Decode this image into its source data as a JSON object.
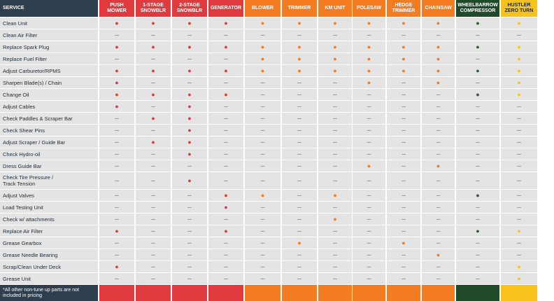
{
  "header": {
    "service": "SERVICE"
  },
  "columns": [
    {
      "label": "PUSH\nMOWER",
      "color": "#e03a3e",
      "dot": "#e03a3e",
      "text": "#ffffff"
    },
    {
      "label": "1-STAGE\nSNOWBLR",
      "color": "#e03a3e",
      "dot": "#e03a3e",
      "text": "#ffffff"
    },
    {
      "label": "2-STAGE\nSNOWBLR",
      "color": "#e03a3e",
      "dot": "#e03a3e",
      "text": "#ffffff"
    },
    {
      "label": "GENERATOR",
      "color": "#e03a3e",
      "dot": "#e03a3e",
      "text": "#ffffff"
    },
    {
      "label": "BLOWER",
      "color": "#f47b20",
      "dot": "#f47b20",
      "text": "#ffffff"
    },
    {
      "label": "TRIMMER",
      "color": "#f47b20",
      "dot": "#f47b20",
      "text": "#ffffff"
    },
    {
      "label": "KM UNIT",
      "color": "#f47b20",
      "dot": "#f47b20",
      "text": "#ffffff"
    },
    {
      "label": "POLESAW",
      "color": "#f47b20",
      "dot": "#f47b20",
      "text": "#ffffff"
    },
    {
      "label": "HEDGE\nTRIMMER",
      "color": "#f47b20",
      "dot": "#f47b20",
      "text": "#ffffff"
    },
    {
      "label": "CHAINSAW",
      "color": "#f47b20",
      "dot": "#f47b20",
      "text": "#ffffff"
    },
    {
      "label": "WHEELBARROW\nCOMPRESSOR",
      "color": "#1f4a2a",
      "dot": "#2b5a30",
      "text": "#ffffff"
    },
    {
      "label": "HUSTLER\nZERO TURN",
      "color": "#f7c21b",
      "dot": "#f5c518",
      "text": "#1f2a36"
    }
  ],
  "rows": [
    {
      "service": "Clean Unit",
      "cells": [
        "●",
        "●",
        "●",
        "●",
        "●",
        "●",
        "●",
        "●",
        "●",
        "●",
        "●",
        "●"
      ]
    },
    {
      "service": "Clean Air Filter",
      "cells": [
        "–",
        "–",
        "–",
        "–",
        "–",
        "–",
        "–",
        "–",
        "–",
        "–",
        "–",
        "–"
      ]
    },
    {
      "service": "Replace Spark Plug",
      "cells": [
        "●",
        "●",
        "●",
        "●",
        "●",
        "●",
        "●",
        "●",
        "●",
        "●",
        "●",
        "●"
      ]
    },
    {
      "service": "Replace Fuel Filter",
      "cells": [
        "–",
        "–",
        "–",
        "–",
        "●",
        "●",
        "●",
        "●",
        "●",
        "●",
        "–",
        "●"
      ]
    },
    {
      "service": "Adjust Carburetor/RPMS",
      "cells": [
        "●",
        "●",
        "●",
        "●",
        "●",
        "●",
        "●",
        "●",
        "●",
        "●",
        "●",
        "●"
      ]
    },
    {
      "service": "Sharpen Blade(s) / Chain",
      "cells": [
        "●",
        "–",
        "–",
        "–",
        "–",
        "–",
        "–",
        "●",
        "–",
        "●",
        "–",
        "●"
      ]
    },
    {
      "service": "Change Oil",
      "cells": [
        "●",
        "●",
        "●",
        "●",
        "–",
        "–",
        "–",
        "–",
        "–",
        "–",
        "●",
        "●"
      ]
    },
    {
      "service": "Adjust Cables",
      "cells": [
        "●",
        "–",
        "●",
        "–",
        "–",
        "–",
        "–",
        "–",
        "–",
        "–",
        "–",
        "–"
      ]
    },
    {
      "service": "Check Paddles & Scraper Bar",
      "cells": [
        "–",
        "●",
        "●",
        "–",
        "–",
        "–",
        "–",
        "–",
        "–",
        "–",
        "–",
        "–"
      ]
    },
    {
      "service": "Check Shear Pins",
      "cells": [
        "–",
        "–",
        "●",
        "–",
        "–",
        "–",
        "–",
        "–",
        "–",
        "–",
        "–",
        "–"
      ]
    },
    {
      "service": "Adjust Scraper / Guide Bar",
      "cells": [
        "–",
        "●",
        "●",
        "–",
        "–",
        "–",
        "–",
        "–",
        "–",
        "–",
        "–",
        "–"
      ]
    },
    {
      "service": "Check Hydro-oil",
      "cells": [
        "–",
        "–",
        "●",
        "–",
        "–",
        "–",
        "–",
        "–",
        "–",
        "–",
        "–",
        "–"
      ]
    },
    {
      "service": "Dress Guide Bar",
      "cells": [
        "–",
        "–",
        "–",
        "–",
        "–",
        "–",
        "–",
        "●",
        "–",
        "●",
        "–",
        "–"
      ]
    },
    {
      "service": "Check Tire Pressure /\nTrack Tension",
      "cells": [
        "–",
        "–",
        "●",
        "–",
        "–",
        "–",
        "–",
        "–",
        "–",
        "–",
        "–",
        "–"
      ]
    },
    {
      "service": "Adjust Valves",
      "cells": [
        "–",
        "–",
        "–",
        "●",
        "●",
        "–",
        "●",
        "–",
        "–",
        "–",
        "●",
        "–"
      ]
    },
    {
      "service": "Load Testing Unit",
      "cells": [
        "–",
        "–",
        "–",
        "●",
        "–",
        "–",
        "–",
        "–",
        "–",
        "–",
        "–",
        "–"
      ]
    },
    {
      "service": "Check w/ attachments",
      "cells": [
        "–",
        "–",
        "–",
        "–",
        "–",
        "–",
        "●",
        "–",
        "–",
        "–",
        "–",
        "–"
      ]
    },
    {
      "service": "Replace Air Filter",
      "cells": [
        "●",
        "–",
        "–",
        "●",
        "–",
        "–",
        "–",
        "–",
        "–",
        "–",
        "●",
        "●"
      ]
    },
    {
      "service": "Grease Gearbox",
      "cells": [
        "–",
        "–",
        "–",
        "–",
        "–",
        "●",
        "–",
        "–",
        "●",
        "–",
        "–",
        "–"
      ]
    },
    {
      "service": "Grease Needle Bearing",
      "cells": [
        "–",
        "–",
        "–",
        "–",
        "–",
        "–",
        "–",
        "–",
        "–",
        "●",
        "–",
        "–"
      ]
    },
    {
      "service": "Scrap/Clean Under Deck",
      "cells": [
        "●",
        "–",
        "–",
        "–",
        "–",
        "–",
        "–",
        "–",
        "–",
        "–",
        "–",
        "●"
      ]
    },
    {
      "service": "Grease Unit",
      "cells": [
        "–",
        "–",
        "–",
        "–",
        "–",
        "–",
        "–",
        "–",
        "–",
        "–",
        "–",
        "●"
      ]
    }
  ],
  "footer": {
    "note": "*All other non-tune up parts are not included in pricing"
  }
}
